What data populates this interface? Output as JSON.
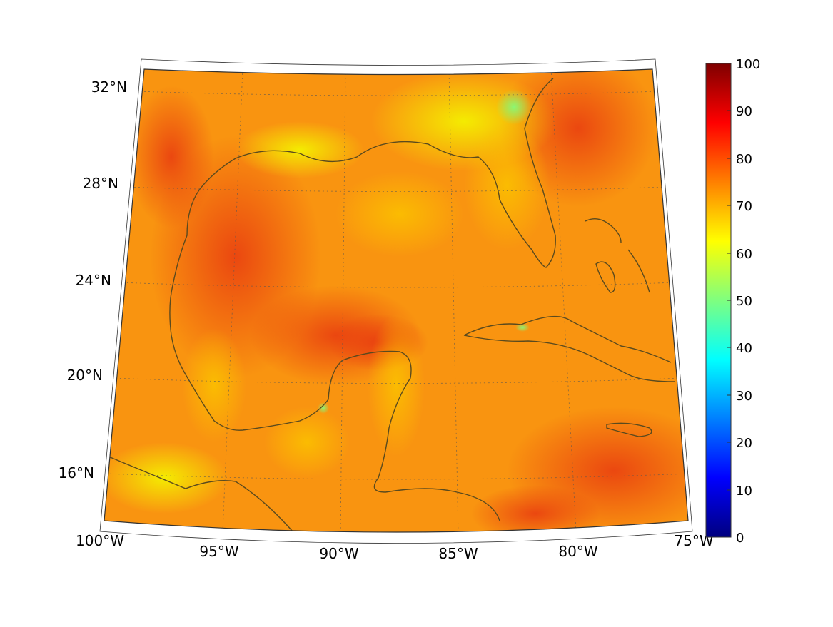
{
  "map": {
    "lat_labels": [
      "32°N",
      "28°N",
      "24°N",
      "20°N",
      "16°N"
    ],
    "lon_labels": [
      "100°W",
      "95°W",
      "90°W",
      "85°W",
      "80°W",
      "75°W"
    ],
    "lat_values": [
      32,
      28,
      24,
      20,
      16
    ],
    "lon_values": [
      -100,
      -95,
      -90,
      -85,
      -80,
      -75
    ],
    "extent": {
      "lon_min": -100,
      "lon_max": -75,
      "lat_min": 14,
      "lat_max": 33
    },
    "projection": "conic",
    "grid": "dotted",
    "coastline_color": "#5a4a1e"
  },
  "colorbar": {
    "ticks": [
      "100",
      "90",
      "80",
      "70",
      "60",
      "50",
      "40",
      "30",
      "20",
      "10",
      "0"
    ],
    "min": 0,
    "max": 100,
    "colormap": "jet"
  }
}
